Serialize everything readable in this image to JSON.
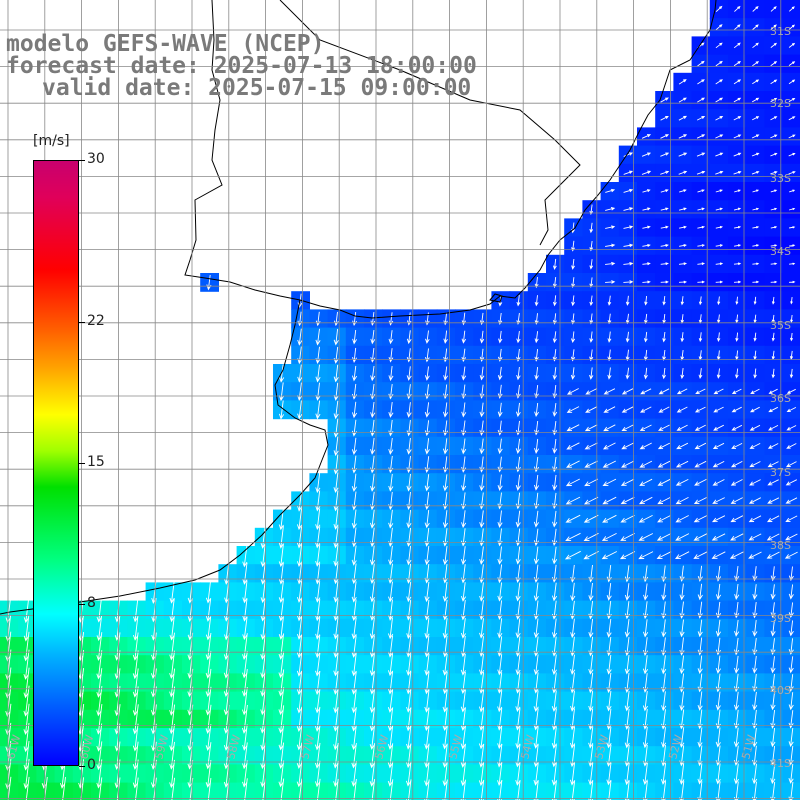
{
  "title": {
    "line1": "modelo GEFS-WAVE (NCEP)",
    "line2": "forecast date: 2025-07-13 18:00:00",
    "line3": "valid date: 2025-07-15 09:00:00"
  },
  "colorbar": {
    "unit": "[m/s]",
    "ticks": [
      "30",
      "22",
      "15",
      "8",
      "0"
    ],
    "tick_values": [
      30,
      22,
      15,
      8,
      0
    ],
    "colors": [
      "#0000ff",
      "#00a0ff",
      "#00ffff",
      "#00ff80",
      "#00d000",
      "#80ff00",
      "#ffff00",
      "#ff8000",
      "#ff0000",
      "#e0006a",
      "#c00090"
    ]
  },
  "axes": {
    "lat_labels": [
      "32S",
      "33S",
      "34S",
      "35S",
      "36S",
      "37S",
      "38S",
      "39S",
      "40S",
      "41S"
    ],
    "lon_labels": [
      "61W",
      "60W",
      "59W",
      "58W",
      "57W",
      "56W",
      "55W",
      "54W",
      "53W",
      "52W",
      "51W"
    ],
    "top_right_label": "31S"
  },
  "colors": {
    "land": "#ffffff",
    "coast": "#000000",
    "grid": "#888888",
    "arrow": "#ffffff",
    "label": "#7a7a7a"
  }
}
